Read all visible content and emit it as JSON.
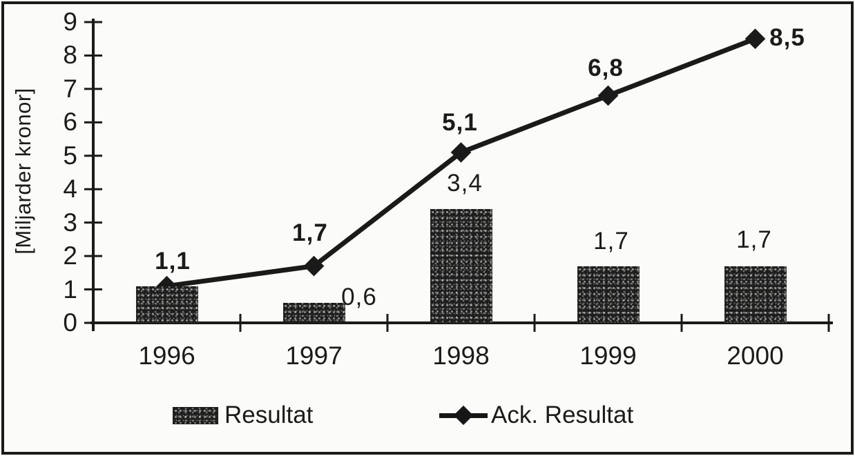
{
  "colors": {
    "ink": "#1a1a1a",
    "background": "#fbfbf9"
  },
  "chart_data": {
    "type": "combo",
    "categories": [
      "1996",
      "1997",
      "1998",
      "1999",
      "2000"
    ],
    "series": [
      {
        "name": "Resultat",
        "type": "bar",
        "values": [
          1.1,
          0.6,
          3.4,
          1.7,
          1.7
        ],
        "labels": [
          "",
          "0,6",
          "3,4",
          "1,7",
          "1,7"
        ]
      },
      {
        "name": "Ack. Resultat",
        "type": "line",
        "marker": "diamond",
        "values": [
          1.1,
          1.7,
          5.1,
          6.8,
          8.5
        ],
        "labels": [
          "1,1",
          "1,7",
          "5,1",
          "6,8",
          "8,5"
        ]
      }
    ],
    "title": "",
    "xlabel": "",
    "ylabel": "[Miljarder kronor]",
    "ylim": [
      0,
      9
    ],
    "ytick_step": 1,
    "grid": false,
    "legend_position": "bottom"
  }
}
